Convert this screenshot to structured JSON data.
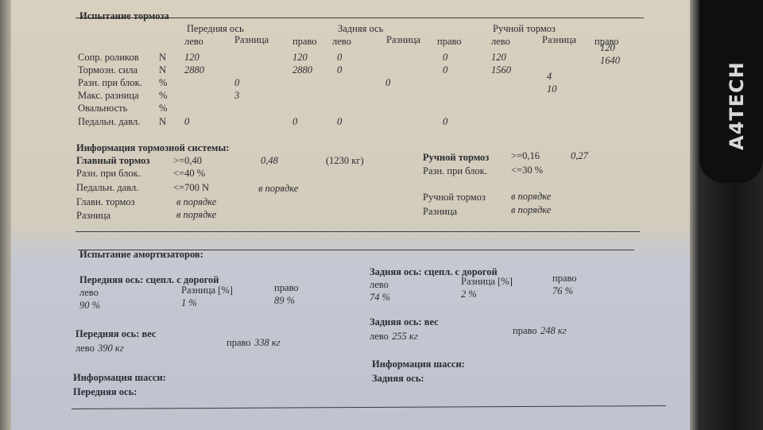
{
  "background": {
    "brand": "A4TECH"
  },
  "brake_test": {
    "title": "Испытание тормоза",
    "groups": [
      {
        "name": "Передняя ось",
        "left": "лево",
        "diff": "Разница",
        "right": "право"
      },
      {
        "name": "Задняя ось",
        "left": "лево",
        "diff": "Разница",
        "right": "право"
      },
      {
        "name": "Ручной тормоз",
        "left": "лево",
        "diff": "Разница",
        "right": "право"
      }
    ],
    "rows": [
      {
        "label": "Сопр. роликов",
        "unit": "N",
        "front_left": 120,
        "front_right": 120,
        "rear_left": 0,
        "rear_right": 0,
        "hand_left": 120,
        "hand_right": 120
      },
      {
        "label": "Тормозн. сила",
        "unit": "N",
        "front_left": 2880,
        "front_right": 2880,
        "rear_left": 0,
        "rear_right": 0,
        "hand_left": 1560,
        "hand_right": 1640
      },
      {
        "label": "Разн. при блок.",
        "unit": "%",
        "front_diff": 0,
        "rear_diff": 0,
        "hand_diff": 4
      },
      {
        "label": "Макс. разница",
        "unit": "%",
        "front_diff": 3,
        "hand_diff": 10
      },
      {
        "label": "Овальность",
        "unit": "%"
      },
      {
        "label": "Педальн. давл.",
        "unit": "N",
        "front_left": 0,
        "front_right": 0,
        "rear_left": 0,
        "rear_right": 0
      }
    ]
  },
  "brake_info": {
    "title": "Информация тормозной системы:",
    "main_brake": {
      "label": "Главный тормоз",
      "requirement": ">=0,40",
      "value": "0,48",
      "mass": "(1230 кг)"
    },
    "main_block_diff": {
      "label": "Разн. при блок.",
      "requirement": "<=40 %"
    },
    "pedal_pressure": {
      "label": "Педальн. давл.",
      "requirement": "<=700 N",
      "status": "в порядке"
    },
    "main_status": {
      "label": "Главн. тормоз",
      "status": "в порядке"
    },
    "main_difference": {
      "label": "Разница",
      "status": "в порядке"
    },
    "hand_brake": {
      "label": "Ручной тормоз",
      "requirement": ">=0,16",
      "value": "0,27"
    },
    "hand_block_diff": {
      "label": "Разн. при блок.",
      "requirement": "<=30 %"
    },
    "hand_status": {
      "label": "Ручной тормоз",
      "status": "в порядке"
    },
    "hand_difference": {
      "label": "Разница",
      "status": "в порядке"
    }
  },
  "shock_test": {
    "title": "Испытание амортизаторов:",
    "front_grip": {
      "title": "Передняя ось: сцепл. с дорогой",
      "left_label": "лево",
      "left": "90 %",
      "diff_label": "Разница [%]",
      "diff": "1 %",
      "right_label": "право",
      "right": "89 %"
    },
    "rear_grip": {
      "title": "Задняя ось: сцепл. с дорогой",
      "left_label": "лево",
      "left": "74 %",
      "diff_label": "Разница [%]",
      "diff": "2 %",
      "right_label": "право",
      "right": "76 %"
    },
    "front_weight": {
      "title": "Передняя ось: вес",
      "left_label": "лево",
      "left": "390 кг",
      "right_label": "право",
      "right": "338 кг"
    },
    "rear_weight": {
      "title": "Задняя ось: вес",
      "left_label": "лево",
      "left": "255 кг",
      "right_label": "право",
      "right": "248 кг"
    },
    "front_chassis": {
      "title": "Информация шасси:",
      "axle": "Передняя ось:"
    },
    "rear_chassis": {
      "title": "Информация шасси:",
      "axle": "Задняя ось:"
    }
  }
}
